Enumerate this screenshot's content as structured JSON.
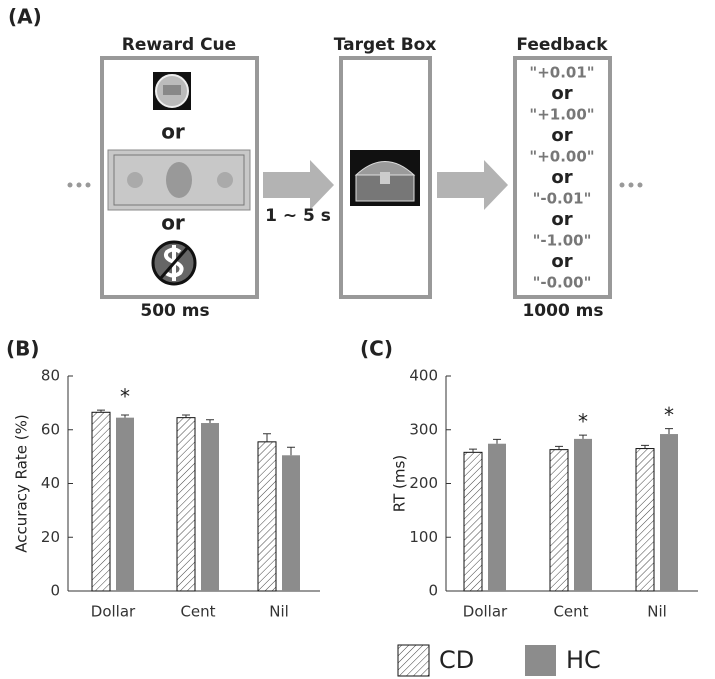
{
  "panel_a": {
    "label": "(A)",
    "stages": [
      {
        "title": "Reward Cue",
        "items": [
          "or",
          "or"
        ],
        "duration": "500 ms"
      },
      {
        "title": "Target Box"
      },
      {
        "title": "Feedback",
        "items": [
          "\"+0.01\"",
          "or",
          "\"+1.00\"",
          "or",
          "\"+0.00\"",
          "or",
          "\"-0.01\"",
          "or",
          "\"-1.00\"",
          "or",
          "\"-0.00\""
        ],
        "duration": "1000 ms"
      }
    ],
    "interval": "1 ~ 5 s"
  },
  "chart_data": [
    {
      "type": "bar",
      "panel_label": "(B)",
      "y_label": "Accuracy Rate (%)",
      "categories": [
        "Dollar",
        "Cent",
        "Nil"
      ],
      "series": [
        {
          "name": "CD",
          "color": "#ffffff",
          "hatch": true,
          "values": [
            66.5,
            64.5,
            55.5
          ],
          "errors": [
            0.8,
            1,
            3
          ]
        },
        {
          "name": "HC",
          "color": "#8c8c8c",
          "hatch": false,
          "values": [
            64.5,
            62.5,
            50.5
          ],
          "errors": [
            1,
            1.2,
            3
          ]
        }
      ],
      "significance": [
        "*",
        null,
        null
      ],
      "ylim": [
        0,
        80
      ],
      "yticks": [
        0,
        20,
        40,
        60,
        80
      ]
    },
    {
      "type": "bar",
      "panel_label": "(C)",
      "y_label": "RT (ms)",
      "categories": [
        "Dollar",
        "Cent",
        "Nil"
      ],
      "series": [
        {
          "color": "#ffffff",
          "hatch": true,
          "values": [
            258,
            263,
            265
          ],
          "errors": [
            6,
            6,
            6
          ]
        },
        {
          "color": "#8c8c8c",
          "hatch": false,
          "values": [
            274,
            283,
            292
          ],
          "errors": [
            8,
            7,
            10
          ]
        }
      ],
      "significance": [
        null,
        "*",
        "*"
      ],
      "ylim": [
        0,
        400
      ],
      "yticks": [
        0,
        100,
        200,
        300,
        400
      ]
    }
  ]
}
